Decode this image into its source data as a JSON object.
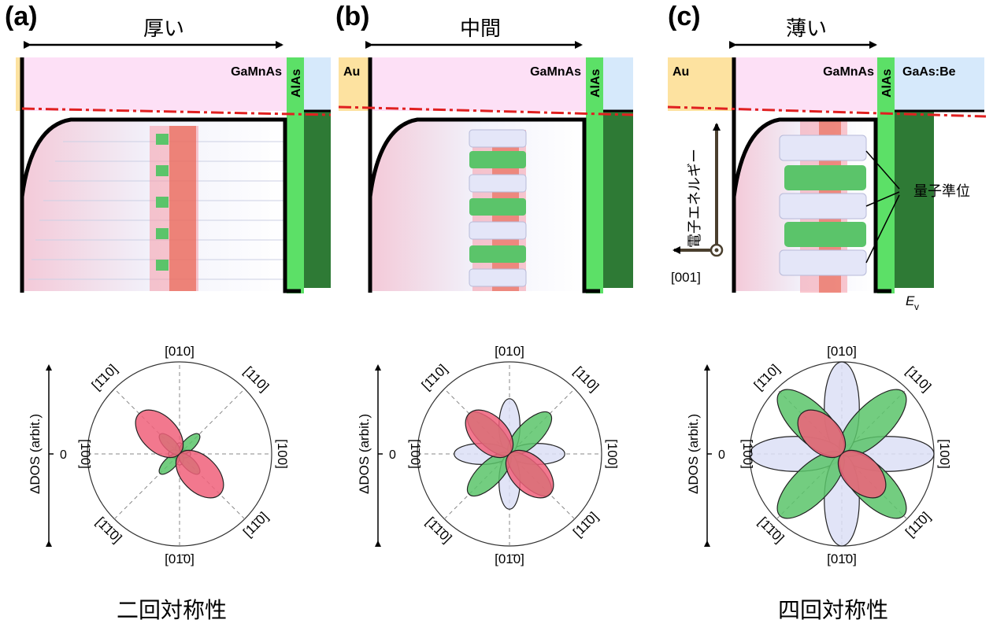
{
  "panels": [
    {
      "id": "a",
      "label": "(a)",
      "thickness_label": "厚い",
      "layers": {
        "left": "",
        "middle": "GaMnAs",
        "barrier": "AlAs",
        "right": ""
      },
      "polar": {
        "lobe_scale": {
          "pink": 0.62,
          "green": 0.3,
          "blue": 0.12
        }
      }
    },
    {
      "id": "b",
      "label": "(b)",
      "thickness_label": "中間",
      "layers": {
        "left": "Au",
        "middle": "GaMnAs",
        "barrier": "AlAs",
        "right": ""
      },
      "polar": {
        "lobe_scale": {
          "pink": 0.62,
          "green": 0.62,
          "blue": 0.6
        }
      }
    },
    {
      "id": "c",
      "label": "(c)",
      "thickness_label": "薄い",
      "layers": {
        "left": "Au",
        "middle": "GaMnAs",
        "barrier": "AlAs",
        "right": "GaAs:Be"
      },
      "polar": {
        "lobe_scale": {
          "pink": 0.62,
          "green": 0.95,
          "blue": 1.0
        }
      }
    }
  ],
  "annotations": {
    "energy_axis": "電子エネルギー",
    "quantum_levels": "量子準位",
    "direction": "[001]",
    "ev_main": "E",
    "ev_sub": "v"
  },
  "polar_labels": {
    "ylabel": "ΔDOS (arbit.)",
    "zero": "0",
    "top": "[010]",
    "bottom": "[01̄0]",
    "left": "[1̄00]",
    "right": "[100]",
    "upper_left": "[1̄10]",
    "upper_right": "[110]",
    "lower_left": "[1̄1̄0]",
    "lower_right": "[11̄0]"
  },
  "captions": {
    "two_fold": "二回対称性",
    "four_fold": "四回対称性"
  },
  "colors": {
    "gamnas_bg": "#fde0f6",
    "au": "#fde2a0",
    "alas": "#5ce067",
    "alas_dark": "#2e7a35",
    "gaas": "#d6e9fb",
    "fermi": "#e02020",
    "lobe_pink": "#f0607a",
    "lobe_green": "#5bc46a",
    "lobe_blue": "#dcdff6"
  }
}
